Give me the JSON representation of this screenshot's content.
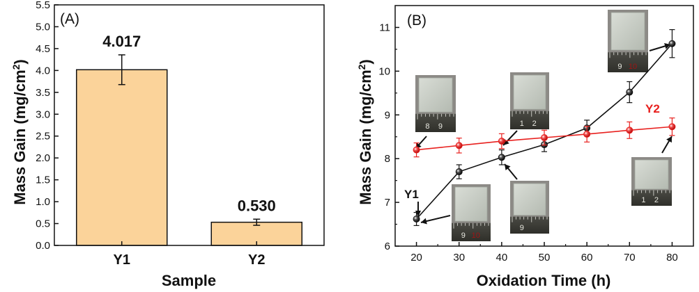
{
  "colors": {
    "bar_fill": "#fbd39a",
    "y1_series": "#111111",
    "y2_series": "#e8201e",
    "axis": "#111111"
  },
  "panelA": {
    "label": "(A)",
    "chart_data": {
      "type": "bar",
      "title": "",
      "xlabel": "Sample",
      "ylabel": "Mass Gain (mg/cm",
      "ylabel_sup": "2",
      "ylabel_end": ")",
      "categories": [
        "Y1",
        "Y2"
      ],
      "values": [
        4.017,
        0.53
      ],
      "errors": [
        0.34,
        0.07
      ],
      "value_labels": [
        "4.017",
        "0.530"
      ],
      "ylim": [
        0,
        5.5
      ],
      "yticks": [
        "0.0",
        "0.5",
        "1.0",
        "1.5",
        "2.0",
        "2.5",
        "3.0",
        "3.5",
        "4.0",
        "4.5",
        "5.0",
        "5.5"
      ],
      "grid": false
    }
  },
  "panelB": {
    "label": "(B)",
    "chart_data": {
      "type": "line",
      "title": "",
      "xlabel": "Oxidation Time (h)",
      "ylabel": "Mass Gain (mg/cm",
      "ylabel_sup": "2",
      "ylabel_end": ")",
      "x": [
        20,
        30,
        40,
        50,
        60,
        70,
        80
      ],
      "xticks": [
        "20",
        "30",
        "40",
        "50",
        "60",
        "70",
        "80"
      ],
      "xlim": [
        15,
        85
      ],
      "ylim": [
        6,
        11.5
      ],
      "yticks": [
        "6",
        "7",
        "8",
        "9",
        "10",
        "11"
      ],
      "grid": false,
      "series": [
        {
          "name": "Y1",
          "values": [
            6.62,
            7.7,
            8.03,
            8.32,
            8.7,
            9.52,
            10.63
          ],
          "errors": [
            0.15,
            0.16,
            0.17,
            0.16,
            0.18,
            0.24,
            0.32
          ]
        },
        {
          "name": "Y2",
          "values": [
            8.2,
            8.3,
            8.4,
            8.48,
            8.56,
            8.65,
            8.73
          ],
          "errors": [
            0.16,
            0.17,
            0.17,
            0.17,
            0.18,
            0.19,
            0.2
          ]
        }
      ],
      "photo_scale_labels": [
        {
          "a": "8",
          "b": "9"
        },
        {
          "a": "1",
          "b": "2"
        },
        {
          "a": "9",
          "b": ""
        },
        {
          "a": "9",
          "b": ""
        },
        {
          "a": "9",
          "b": "10"
        },
        {
          "a": "1",
          "b": "2"
        }
      ]
    }
  }
}
